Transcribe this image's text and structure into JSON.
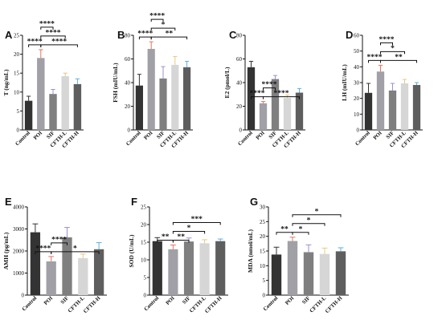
{
  "colors": {
    "Control": "#333333",
    "POI": "#a0a0a6",
    "SIF": "#7f7f7f",
    "CFTH-L": "#d6d6d6",
    "CFTH-H": "#5e5e5e",
    "error_colors": [
      "#333333",
      "#e8735a",
      "#9b8fd0",
      "#e9c87d",
      "#5ab0e0"
    ]
  },
  "chart_data": [
    {
      "id": "A",
      "type": "bar",
      "panel_label": "A",
      "categories": [
        "Control",
        "POI",
        "SIF",
        "CFTH-L",
        "CFTH-H"
      ],
      "values": [
        7.7,
        19.0,
        9.5,
        14.2,
        12.1
      ],
      "errors": [
        1.2,
        2.2,
        1.2,
        0.8,
        1.4
      ],
      "ylabel": "T (ng/mL)",
      "ylim": [
        0,
        25
      ],
      "yticks": [
        0,
        5,
        10,
        15,
        20,
        25
      ],
      "significance": [
        {
          "from": 0,
          "to": 1,
          "label": "****",
          "level": 1
        },
        {
          "from": 1,
          "to": 2,
          "label": "****",
          "level": 3
        },
        {
          "from": 1,
          "to": 3,
          "label": "****",
          "level": 2
        },
        {
          "from": 1,
          "to": 4,
          "label": "****",
          "level": 1
        }
      ]
    },
    {
      "id": "B",
      "type": "bar",
      "panel_label": "B",
      "categories": [
        "Control",
        "POI",
        "SIF",
        "CFTH-L",
        "CFTH-H"
      ],
      "values": [
        37.5,
        68.5,
        43.5,
        55.0,
        53.0
      ],
      "errors": [
        9.5,
        6.0,
        10.0,
        7.0,
        5.0
      ],
      "ylabel": "FSH (mIU/mL)",
      "ylim": [
        0,
        80
      ],
      "yticks": [
        0,
        20,
        40,
        60,
        80
      ],
      "significance": [
        {
          "from": 0,
          "to": 1,
          "label": "****",
          "level": 1
        },
        {
          "from": 1,
          "to": 2,
          "label": "****",
          "level": 3
        },
        {
          "from": 1,
          "to": 3,
          "label": "*",
          "level": 2
        },
        {
          "from": 1,
          "to": 4,
          "label": "**",
          "level": 1
        }
      ]
    },
    {
      "id": "C",
      "type": "bar",
      "panel_label": "C",
      "categories": [
        "Control",
        "POI",
        "SIF",
        "CFTH-L",
        "CFTH-H"
      ],
      "values": [
        53.0,
        22.5,
        43.0,
        27.0,
        31.5
      ],
      "errors": [
        5.0,
        1.5,
        3.0,
        2.5,
        3.5
      ],
      "ylabel": "E2 (pmol/L)",
      "ylim": [
        0,
        80
      ],
      "yticks": [
        0,
        20,
        40,
        60,
        80
      ],
      "significance": [
        {
          "from": 0,
          "to": 1,
          "label": "****",
          "level": 1
        },
        {
          "from": 1,
          "to": 2,
          "label": "****",
          "level": 2
        },
        {
          "from": 1,
          "to": 4,
          "label": "****",
          "level": 1
        }
      ]
    },
    {
      "id": "D",
      "type": "bar",
      "panel_label": "D",
      "categories": [
        "Control",
        "POI",
        "SIF",
        "CFTH-L",
        "CFTH-H"
      ],
      "values": [
        23.5,
        37.0,
        25.0,
        29.5,
        28.5
      ],
      "errors": [
        6.0,
        4.0,
        4.5,
        2.5,
        1.5
      ],
      "ylabel": "LH (mIU/mL)",
      "ylim": [
        0,
        60
      ],
      "yticks": [
        0,
        10,
        20,
        30,
        40,
        50,
        60
      ],
      "significance": [
        {
          "from": 0,
          "to": 1,
          "label": "****",
          "level": 1
        },
        {
          "from": 1,
          "to": 2,
          "label": "****",
          "level": 3
        },
        {
          "from": 1,
          "to": 3,
          "label": "*",
          "level": 2
        },
        {
          "from": 1,
          "to": 4,
          "label": "**",
          "level": 1
        }
      ]
    },
    {
      "id": "E",
      "type": "bar",
      "panel_label": "E",
      "categories": [
        "Control",
        "POI",
        "SIF",
        "CFTH-L",
        "CFTH-H"
      ],
      "values": [
        2850,
        1530,
        2620,
        1680,
        2080
      ],
      "errors": [
        380,
        220,
        450,
        180,
        300
      ],
      "ylabel": "AMH (pg/mL)",
      "ylim": [
        0,
        4000
      ],
      "yticks": [
        0,
        1000,
        2000,
        3000,
        4000
      ],
      "significance": [
        {
          "from": 0,
          "to": 1,
          "label": "****",
          "level": 1
        },
        {
          "from": 1,
          "to": 2,
          "label": "****",
          "level": 2
        },
        {
          "from": 1,
          "to": 4,
          "label": "*",
          "level": 1
        }
      ]
    },
    {
      "id": "F",
      "type": "bar",
      "panel_label": "F",
      "categories": [
        "Control",
        "POI",
        "SIF",
        "CFTH-L",
        "CFTH-H"
      ],
      "values": [
        15.3,
        13.0,
        15.2,
        14.7,
        15.3
      ],
      "errors": [
        1.0,
        1.2,
        1.0,
        1.0,
        0.6
      ],
      "ylabel": "SOD (U/mL)",
      "ylim": [
        0,
        25
      ],
      "yticks": [
        0,
        5,
        10,
        15,
        20,
        25
      ],
      "significance": [
        {
          "from": 0,
          "to": 1,
          "label": "**",
          "level": 1
        },
        {
          "from": 1,
          "to": 2,
          "label": "**",
          "level": 1
        },
        {
          "from": 1,
          "to": 3,
          "label": "*",
          "level": 2
        },
        {
          "from": 1,
          "to": 4,
          "label": "***",
          "level": 3
        }
      ]
    },
    {
      "id": "G",
      "type": "bar",
      "panel_label": "G",
      "categories": [
        "Control",
        "POI",
        "SIF",
        "CFTH-L",
        "CFTH-H"
      ],
      "values": [
        13.8,
        18.4,
        14.6,
        14.0,
        14.9
      ],
      "errors": [
        2.5,
        1.3,
        2.5,
        2.0,
        1.2
      ],
      "ylabel": "MDA (nmol/mL)",
      "ylim": [
        0,
        30
      ],
      "yticks": [
        0,
        5,
        10,
        15,
        20,
        25,
        30
      ],
      "significance": [
        {
          "from": 0,
          "to": 1,
          "label": "**",
          "level": 1
        },
        {
          "from": 1,
          "to": 2,
          "label": "*",
          "level": 1
        },
        {
          "from": 1,
          "to": 3,
          "label": "*",
          "level": 2
        },
        {
          "from": 1,
          "to": 4,
          "label": "*",
          "level": 3
        }
      ]
    }
  ]
}
